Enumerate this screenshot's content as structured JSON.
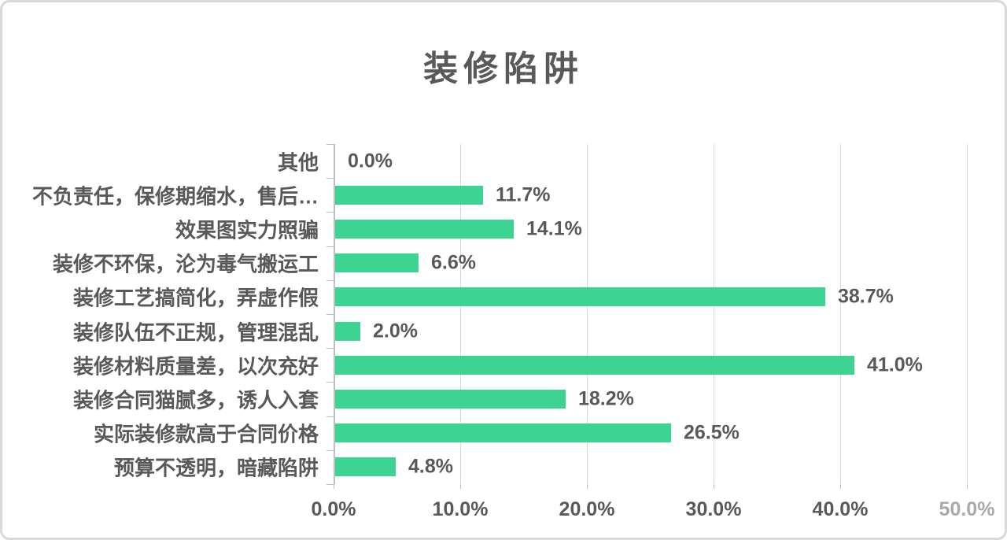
{
  "colors": {
    "bar": "#3DD392",
    "text": "#595959",
    "gridline": "#D9D9D9",
    "axis": "#BFBFBF",
    "card_border": "#D9D9D9",
    "muted_tick": "#A9A9A9"
  },
  "chart_data": {
    "type": "bar",
    "orientation": "horizontal",
    "title": "装修陷阱",
    "categories": [
      "其他",
      "不负责任，保修期缩水，售后…",
      "效果图实力照骗",
      "装修不环保，沦为毒气搬运工",
      "装修工艺搞简化，弄虚作假",
      "装修队伍不正规，管理混乱",
      "装修材料质量差，以次充好",
      "装修合同猫腻多，诱人入套",
      "实际装修款高于合同价格",
      "预算不透明，暗藏陷阱"
    ],
    "values": [
      0.0,
      11.7,
      14.1,
      6.6,
      38.7,
      2.0,
      41.0,
      18.2,
      26.5,
      4.8
    ],
    "value_labels": [
      "0.0%",
      "11.7%",
      "14.1%",
      "6.6%",
      "38.7%",
      "2.0%",
      "41.0%",
      "18.2%",
      "26.5%",
      "4.8%"
    ],
    "x_tick_labels": [
      "0.0%",
      "10.0%",
      "20.0%",
      "30.0%",
      "40.0%",
      "50.0%"
    ],
    "x_tick_muted": [
      false,
      false,
      false,
      false,
      false,
      true
    ],
    "xlim": [
      0,
      50
    ],
    "grid": "vertical",
    "legend": "none",
    "xlabel": "",
    "ylabel": ""
  }
}
